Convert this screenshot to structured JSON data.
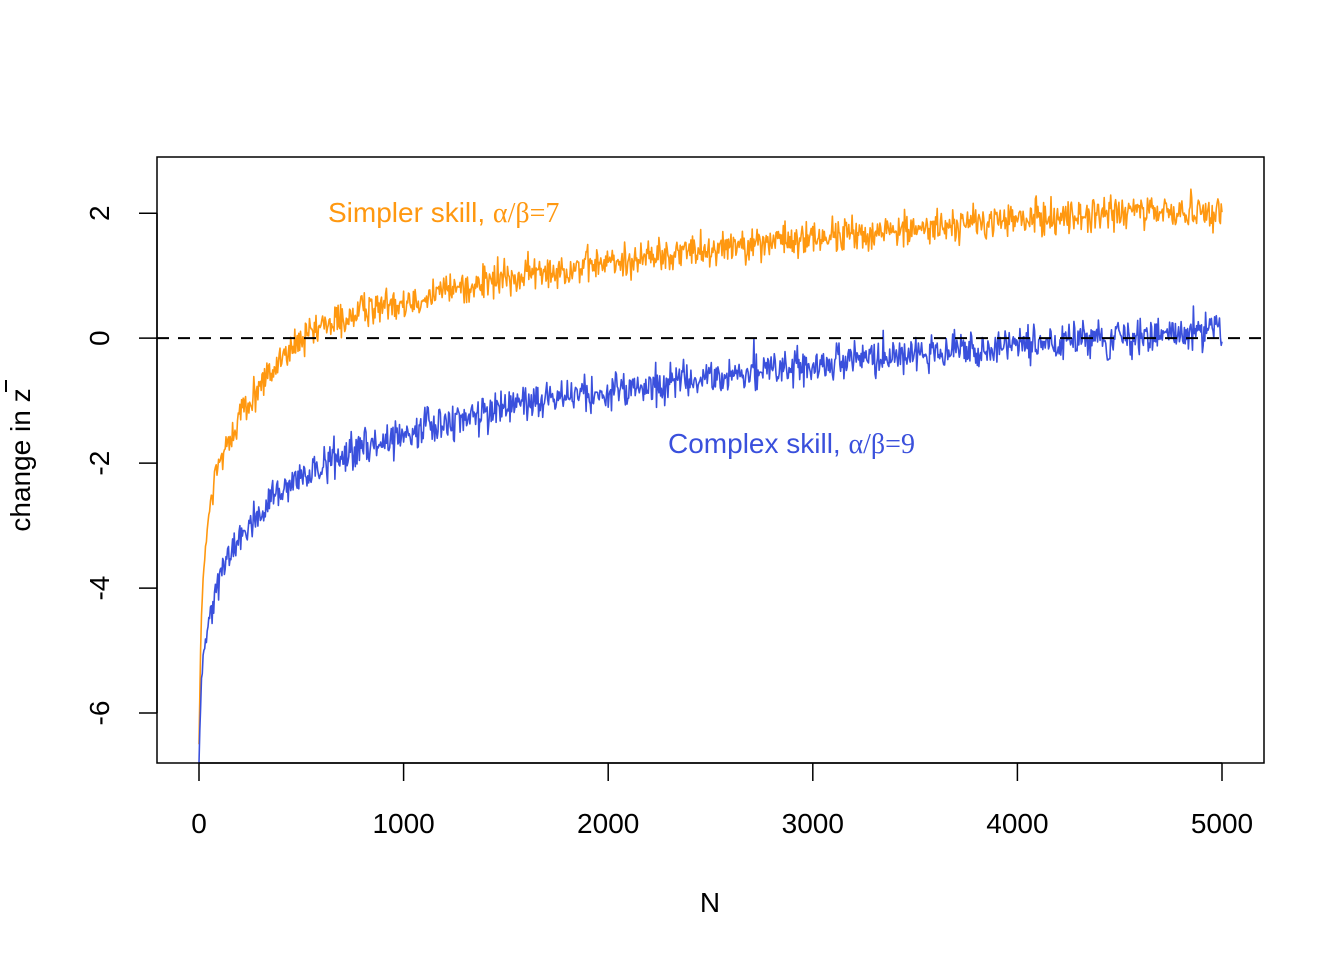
{
  "chart_data": {
    "type": "line",
    "title": "",
    "xlabel": "N",
    "ylabel": "change in z",
    "ylabel_bar_symbol": "z",
    "xlim": [
      0,
      5000
    ],
    "ylim": [
      -6.8,
      2.9
    ],
    "xticks": [
      0,
      1000,
      2000,
      3000,
      4000,
      5000
    ],
    "xtick_labels": [
      "0",
      "1000",
      "2000",
      "3000",
      "4000",
      "5000"
    ],
    "yticks": [
      -6,
      -4,
      -2,
      0,
      2
    ],
    "ytick_labels": [
      "-6",
      "-4",
      "-2",
      "0",
      "2"
    ],
    "reference_line": {
      "y": 0,
      "style": "dashed",
      "color": "#000000"
    },
    "series": [
      {
        "name": "Simpler skill, α/β=7",
        "color": "#FF9810",
        "x": [
          0,
          10,
          25,
          50,
          75,
          100,
          150,
          200,
          300,
          400,
          500,
          600,
          800,
          1000,
          1250,
          1500,
          1750,
          2000,
          2500,
          3000,
          3500,
          4000,
          4500,
          5000
        ],
        "values": [
          -6.5,
          -4.6,
          -3.6,
          -2.8,
          -2.3,
          -2.0,
          -1.6,
          -1.25,
          -0.75,
          -0.35,
          -0.05,
          0.15,
          0.45,
          0.6,
          0.8,
          0.95,
          1.1,
          1.2,
          1.45,
          1.6,
          1.75,
          1.9,
          2.0,
          2.05
        ],
        "noise": 0.14,
        "label": "Simpler skill, ",
        "label_ratio": "α/β=7",
        "label_position": "upper-left"
      },
      {
        "name": "Complex skill, α/β=9",
        "color": "#3A50DC",
        "x": [
          0,
          10,
          25,
          50,
          75,
          100,
          150,
          200,
          300,
          400,
          500,
          600,
          800,
          1000,
          1250,
          1500,
          1750,
          2000,
          2500,
          3000,
          3500,
          4000,
          4500,
          5000
        ],
        "values": [
          -6.8,
          -5.6,
          -5.0,
          -4.4,
          -4.1,
          -3.8,
          -3.5,
          -3.2,
          -2.8,
          -2.5,
          -2.25,
          -2.05,
          -1.75,
          -1.55,
          -1.3,
          -1.1,
          -0.95,
          -0.85,
          -0.62,
          -0.45,
          -0.25,
          -0.1,
          0.0,
          0.1
        ],
        "noise": 0.14,
        "label": "Complex skill, ",
        "label_ratio": "α/β=9",
        "label_position": "center-right"
      }
    ]
  }
}
